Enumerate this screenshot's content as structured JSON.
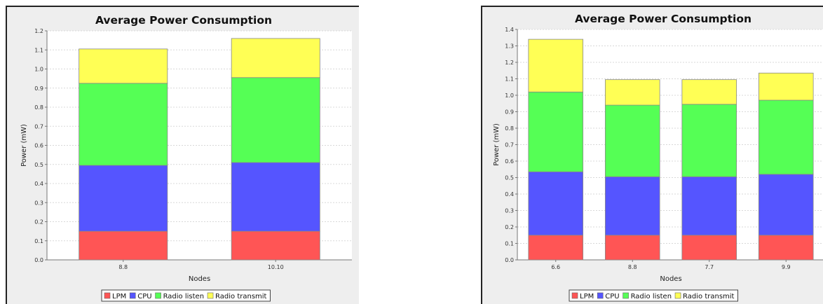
{
  "chart_data": [
    {
      "type": "bar",
      "title": "Average Power Consumption",
      "xlabel": "Nodes",
      "ylabel": "Power (mW)",
      "ylim": [
        0,
        1.2
      ],
      "yticks": [
        "0.0",
        "0.1",
        "0.2",
        "0.3",
        "0.4",
        "0.5",
        "0.6",
        "0.7",
        "0.8",
        "0.9",
        "1.0",
        "1.1",
        "1.2"
      ],
      "categories": [
        "8.8",
        "10.10"
      ],
      "stacked": true,
      "grid": true,
      "legend_position": "bottom",
      "series": [
        {
          "name": "LPM",
          "color": "#ff5555",
          "values": [
            0.15,
            0.15
          ]
        },
        {
          "name": "CPU",
          "color": "#5555ff",
          "values": [
            0.345,
            0.36
          ]
        },
        {
          "name": "Radio listen",
          "color": "#55ff55",
          "values": [
            0.43,
            0.445
          ]
        },
        {
          "name": "Radio transmit",
          "color": "#ffff55",
          "values": [
            0.18,
            0.205
          ]
        }
      ]
    },
    {
      "type": "bar",
      "title": "Average Power Consumption",
      "xlabel": "Nodes",
      "ylabel": "Power (mW)",
      "ylim": [
        0,
        1.4
      ],
      "yticks": [
        "0.0",
        "0.1",
        "0.2",
        "0.3",
        "0.4",
        "0.5",
        "0.6",
        "0.7",
        "0.8",
        "0.9",
        "1.0",
        "1.1",
        "1.2",
        "1.3",
        "1.4"
      ],
      "categories": [
        "6.6",
        "8.8",
        "7.7",
        "9.9"
      ],
      "stacked": true,
      "grid": true,
      "legend_position": "bottom",
      "series": [
        {
          "name": "LPM",
          "color": "#ff5555",
          "values": [
            0.15,
            0.15,
            0.15,
            0.15
          ]
        },
        {
          "name": "CPU",
          "color": "#5555ff",
          "values": [
            0.385,
            0.355,
            0.355,
            0.37
          ]
        },
        {
          "name": "Radio listen",
          "color": "#55ff55",
          "values": [
            0.485,
            0.435,
            0.44,
            0.45
          ]
        },
        {
          "name": "Radio transmit",
          "color": "#ffff55",
          "values": [
            0.32,
            0.155,
            0.15,
            0.165
          ]
        }
      ]
    }
  ]
}
